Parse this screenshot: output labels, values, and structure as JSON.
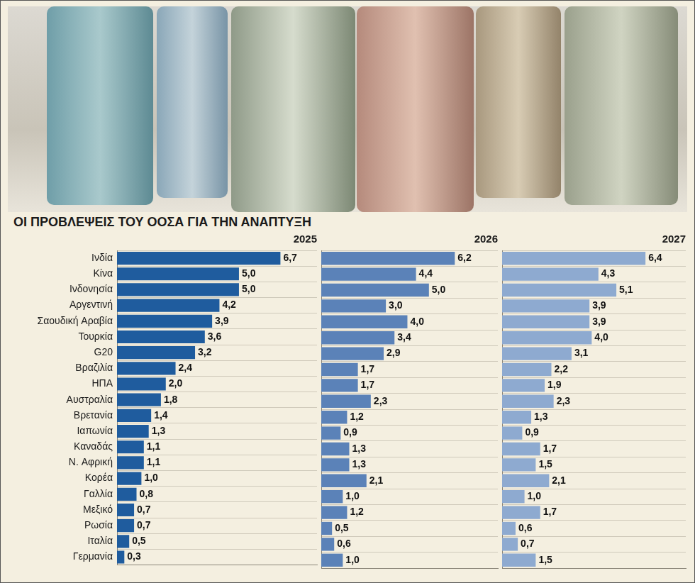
{
  "title": "ΟΙ ΠΡΟΒΛΕΨΕΙΣ ΤΟΥ ΟΟΣΑ ΓΙΑ ΤΗΝ ΑΝΑΠΤΥΞΗ",
  "chart_data": [
    {
      "type": "bar",
      "title": "2025",
      "orientation": "horizontal",
      "data_labels": true,
      "tick_labels": "y",
      "grid": true,
      "color": "#1f5c9e",
      "xlim": [
        0,
        8.2
      ],
      "categories": [
        "Ινδία",
        "Κίνα",
        "Ινδονησία",
        "Αργεντινή",
        "Σαουδική Αραβία",
        "Τουρκία",
        "G20",
        "Βραζιλία",
        "ΗΠΑ",
        "Αυστραλία",
        "Βρετανία",
        "Ιαπωνία",
        "Καναδάς",
        "Ν. Αφρική",
        "Κορέα",
        "Γαλλία",
        "Μεξικό",
        "Ρωσία",
        "Ιταλία",
        "Γερμανία"
      ],
      "values": [
        6.7,
        5.0,
        5.0,
        4.2,
        3.9,
        3.6,
        3.2,
        2.4,
        2.0,
        1.8,
        1.4,
        1.3,
        1.1,
        1.1,
        1.0,
        0.8,
        0.7,
        0.7,
        0.5,
        0.3
      ],
      "value_labels": [
        "6,7",
        "5,0",
        "5,0",
        "4,2",
        "3,9",
        "3,6",
        "3,2",
        "2,4",
        "2,0",
        "1,8",
        "1,4",
        "1,3",
        "1,1",
        "1,1",
        "1,0",
        "0,8",
        "0,7",
        "0,7",
        "0,5",
        "0,3"
      ]
    },
    {
      "type": "bar",
      "title": "2026",
      "orientation": "horizontal",
      "data_labels": true,
      "tick_labels": false,
      "grid": true,
      "color": "#5b82b8",
      "xlim": [
        0,
        8.2
      ],
      "categories": [
        "Ινδία",
        "Κίνα",
        "Ινδονησία",
        "Αργεντινή",
        "Σαουδική Αραβία",
        "Τουρκία",
        "G20",
        "Βραζιλία",
        "ΗΠΑ",
        "Αυστραλία",
        "Βρετανία",
        "Ιαπωνία",
        "Καναδάς",
        "Ν. Αφρική",
        "Κορέα",
        "Γαλλία",
        "Μεξικό",
        "Ρωσία",
        "Ιταλία",
        "Γερμανία"
      ],
      "values": [
        6.2,
        4.4,
        5.0,
        3.0,
        4.0,
        3.4,
        2.9,
        1.7,
        1.7,
        2.3,
        1.2,
        0.9,
        1.3,
        1.3,
        2.1,
        1.0,
        1.2,
        0.5,
        0.6,
        1.0
      ],
      "value_labels": [
        "6,2",
        "4,4",
        "5,0",
        "3,0",
        "4,0",
        "3,4",
        "2,9",
        "1,7",
        "1,7",
        "2,3",
        "1,2",
        "0,9",
        "1,3",
        "1,3",
        "2,1",
        "1,0",
        "1,2",
        "0,5",
        "0,6",
        "1,0"
      ]
    },
    {
      "type": "bar",
      "title": "2027",
      "orientation": "horizontal",
      "data_labels": true,
      "tick_labels": false,
      "grid": true,
      "color": "#8eaad0",
      "xlim": [
        0,
        8.2
      ],
      "categories": [
        "Ινδία",
        "Κίνα",
        "Ινδονησία",
        "Αργεντινή",
        "Σαουδική Αραβία",
        "Τουρκία",
        "G20",
        "Βραζιλία",
        "ΗΠΑ",
        "Αυστραλία",
        "Βρετανία",
        "Ιαπωνία",
        "Καναδάς",
        "Ν. Αφρική",
        "Κορέα",
        "Γαλλία",
        "Μεξικό",
        "Ρωσία",
        "Ιταλία",
        "Γερμανία"
      ],
      "values": [
        6.4,
        4.3,
        5.1,
        3.9,
        3.9,
        4.0,
        3.1,
        2.2,
        1.9,
        2.3,
        1.3,
        0.9,
        1.7,
        1.5,
        2.1,
        1.0,
        1.7,
        0.6,
        0.7,
        1.5
      ],
      "value_labels": [
        "6,4",
        "4,3",
        "5,1",
        "3,9",
        "3,9",
        "4,0",
        "3,1",
        "2,2",
        "1,9",
        "2,3",
        "1,3",
        "0,9",
        "1,7",
        "1,5",
        "2,1",
        "1,0",
        "1,7",
        "0,6",
        "0,7",
        "1,5"
      ]
    }
  ]
}
